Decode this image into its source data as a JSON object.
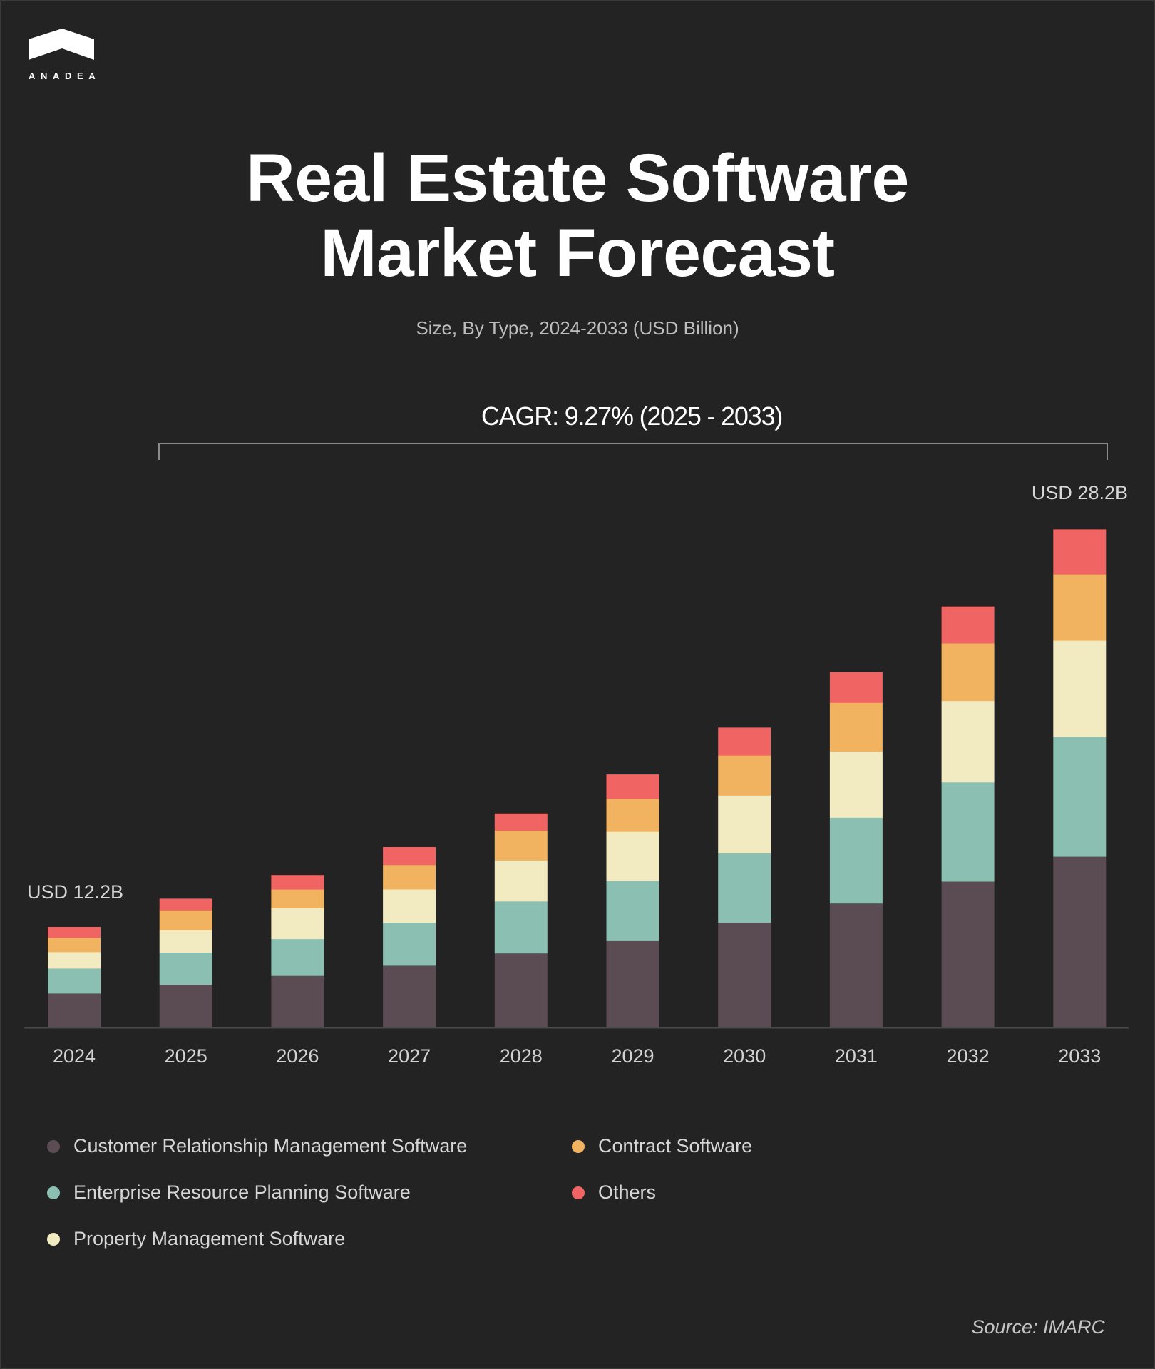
{
  "brand": {
    "name": "ANADEA",
    "logo_icon": "anadea-chevron-logo"
  },
  "header": {
    "title_line1": "Real Estate Software",
    "title_line2": "Market Forecast",
    "subtitle": "Size, By Type, 2024-2033 (USD Billion)"
  },
  "annotations": {
    "cagr": "CAGR: 9.27% (2025 - 2033)",
    "start_total": "USD 12.2B",
    "end_total": "USD 28.2B"
  },
  "source": "Source: IMARC",
  "chart_data": {
    "type": "bar",
    "stacked": true,
    "title": "Real Estate Software Market Forecast",
    "subtitle": "Size, By Type, 2024-2033 (USD Billion)",
    "xlabel": "",
    "ylabel": "USD Billion",
    "grid": false,
    "legend_position": "bottom-left",
    "categories": [
      "2024",
      "2025",
      "2026",
      "2027",
      "2028",
      "2029",
      "2030",
      "2031",
      "2032",
      "2033"
    ],
    "totals": [
      12.2,
      13.9,
      15.2,
      16.6,
      18.1,
      19.8,
      21.6,
      23.6,
      25.8,
      28.2
    ],
    "series": [
      {
        "name": "Customer Relationship Management Software",
        "color": "#5a4c52",
        "values": [
          4.15,
          4.63,
          5.16,
          5.7,
          6.29,
          6.77,
          7.57,
          8.26,
          8.96,
          9.68
        ]
      },
      {
        "name": "Enterprise Resource Planning Software",
        "color": "#8bbfb1",
        "values": [
          3.03,
          3.47,
          3.66,
          3.94,
          4.4,
          4.7,
          5.0,
          5.7,
          6.09,
          6.78
        ]
      },
      {
        "name": "Property Management Software",
        "color": "#f2eac0",
        "values": [
          1.99,
          2.4,
          3.06,
          3.06,
          3.46,
          3.84,
          4.16,
          4.4,
          4.99,
          5.45
        ]
      },
      {
        "name": "Contract Software",
        "color": "#f1b35f",
        "values": [
          1.73,
          2.15,
          1.87,
          2.24,
          2.52,
          2.58,
          2.89,
          3.24,
          3.53,
          3.75
        ]
      },
      {
        "name": "Others",
        "color": "#f06464",
        "values": [
          1.3,
          1.24,
          1.42,
          1.63,
          1.45,
          1.89,
          2.0,
          2.03,
          2.25,
          2.54
        ]
      }
    ],
    "annotations": [
      {
        "text": "CAGR: 9.27% (2025 - 2033)",
        "from": "2025",
        "to": "2033"
      },
      {
        "text": "USD 12.2B",
        "category": "2024"
      },
      {
        "text": "USD 28.2B",
        "category": "2033"
      }
    ]
  }
}
